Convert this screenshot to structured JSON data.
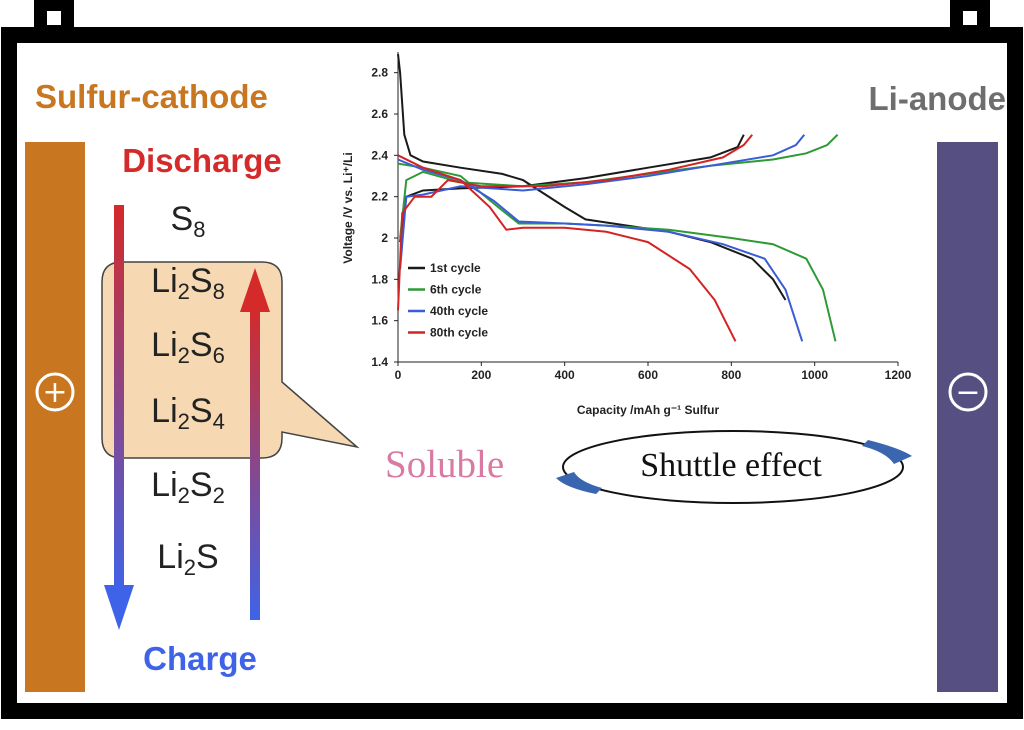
{
  "labels": {
    "cathode_title": "Sulfur-cathode",
    "anode_title": "Li-anode",
    "discharge": "Discharge",
    "charge": "Charge",
    "plus_symbol": "+",
    "minus_symbol": "−",
    "soluble": "Soluble",
    "shuttle_effect": "Shuttle effect"
  },
  "species": [
    {
      "base": "S",
      "sub": "8",
      "tail": ""
    },
    {
      "base": "Li",
      "sub": "2",
      "tail": "S",
      "sub2": "8"
    },
    {
      "base": "Li",
      "sub": "2",
      "tail": "S",
      "sub2": "6"
    },
    {
      "base": "Li",
      "sub": "2",
      "tail": "S",
      "sub2": "4"
    },
    {
      "base": "Li",
      "sub": "2",
      "tail": "S",
      "sub2": "2"
    },
    {
      "base": "Li",
      "sub": "2",
      "tail": "S",
      "sub2": ""
    }
  ],
  "colors": {
    "cathode": "#c8761f",
    "anode": "#565082",
    "soluble_box": "#f6d8b2",
    "discharge_red": "#d42a2a",
    "charge_blue": "#3f63e8"
  },
  "chart_data": {
    "type": "line",
    "xlabel": "Capacity /mAh g⁻¹ Sulfur",
    "ylabel": "Voltage /V vs. Li⁺/Li",
    "xlim": [
      0,
      1200
    ],
    "ylim": [
      1.4,
      2.9
    ],
    "xticks": [
      "0",
      "200",
      "400",
      "600",
      "800",
      "1000",
      "1200"
    ],
    "yticks": [
      "1.4",
      "1.6",
      "1.8",
      "2",
      "2.2",
      "2.4",
      "2.6",
      "2.8"
    ],
    "legend_position": "bottom-left",
    "series": [
      {
        "name": "1st cycle",
        "color": "#1a1a1a",
        "discharge": [
          [
            0,
            2.89
          ],
          [
            5,
            2.8
          ],
          [
            15,
            2.5
          ],
          [
            30,
            2.4
          ],
          [
            60,
            2.37
          ],
          [
            150,
            2.34
          ],
          [
            250,
            2.31
          ],
          [
            300,
            2.28
          ],
          [
            400,
            2.15
          ],
          [
            450,
            2.09
          ],
          [
            550,
            2.06
          ],
          [
            650,
            2.03
          ],
          [
            750,
            1.98
          ],
          [
            850,
            1.9
          ],
          [
            900,
            1.8
          ],
          [
            930,
            1.7
          ]
        ],
        "charge": [
          [
            5,
            1.98
          ],
          [
            20,
            2.2
          ],
          [
            60,
            2.23
          ],
          [
            150,
            2.24
          ],
          [
            300,
            2.25
          ],
          [
            450,
            2.29
          ],
          [
            600,
            2.34
          ],
          [
            750,
            2.39
          ],
          [
            815,
            2.44
          ],
          [
            830,
            2.5
          ]
        ]
      },
      {
        "name": "6th cycle",
        "color": "#2e9a35",
        "discharge": [
          [
            0,
            2.36
          ],
          [
            60,
            2.34
          ],
          [
            150,
            2.3
          ],
          [
            240,
            2.15
          ],
          [
            290,
            2.07
          ],
          [
            400,
            2.07
          ],
          [
            500,
            2.06
          ],
          [
            650,
            2.04
          ],
          [
            800,
            2.0
          ],
          [
            900,
            1.97
          ],
          [
            980,
            1.9
          ],
          [
            1020,
            1.75
          ],
          [
            1050,
            1.5
          ]
        ],
        "charge": [
          [
            5,
            2.0
          ],
          [
            20,
            2.28
          ],
          [
            60,
            2.32
          ],
          [
            150,
            2.27
          ],
          [
            300,
            2.25
          ],
          [
            450,
            2.27
          ],
          [
            600,
            2.31
          ],
          [
            750,
            2.35
          ],
          [
            900,
            2.38
          ],
          [
            980,
            2.41
          ],
          [
            1030,
            2.45
          ],
          [
            1055,
            2.5
          ]
        ]
      },
      {
        "name": "40th cycle",
        "color": "#3a5cd6",
        "discharge": [
          [
            0,
            2.38
          ],
          [
            60,
            2.33
          ],
          [
            150,
            2.28
          ],
          [
            230,
            2.18
          ],
          [
            290,
            2.08
          ],
          [
            400,
            2.07
          ],
          [
            500,
            2.06
          ],
          [
            650,
            2.03
          ],
          [
            780,
            1.97
          ],
          [
            880,
            1.9
          ],
          [
            930,
            1.75
          ],
          [
            970,
            1.5
          ]
        ],
        "charge": [
          [
            5,
            1.85
          ],
          [
            20,
            2.2
          ],
          [
            60,
            2.21
          ],
          [
            150,
            2.25
          ],
          [
            300,
            2.23
          ],
          [
            450,
            2.26
          ],
          [
            600,
            2.3
          ],
          [
            750,
            2.35
          ],
          [
            900,
            2.4
          ],
          [
            955,
            2.45
          ],
          [
            975,
            2.5
          ]
        ]
      },
      {
        "name": "80th cycle",
        "color": "#d42323",
        "discharge": [
          [
            0,
            2.4
          ],
          [
            60,
            2.34
          ],
          [
            150,
            2.28
          ],
          [
            220,
            2.15
          ],
          [
            260,
            2.04
          ],
          [
            300,
            2.05
          ],
          [
            400,
            2.05
          ],
          [
            500,
            2.03
          ],
          [
            600,
            1.98
          ],
          [
            700,
            1.85
          ],
          [
            760,
            1.7
          ],
          [
            810,
            1.5
          ]
        ],
        "charge": [
          [
            0,
            1.65
          ],
          [
            10,
            2.12
          ],
          [
            40,
            2.2
          ],
          [
            80,
            2.2
          ],
          [
            120,
            2.28
          ],
          [
            200,
            2.25
          ],
          [
            350,
            2.25
          ],
          [
            500,
            2.28
          ],
          [
            650,
            2.33
          ],
          [
            780,
            2.39
          ],
          [
            830,
            2.45
          ],
          [
            850,
            2.5
          ]
        ]
      }
    ]
  }
}
